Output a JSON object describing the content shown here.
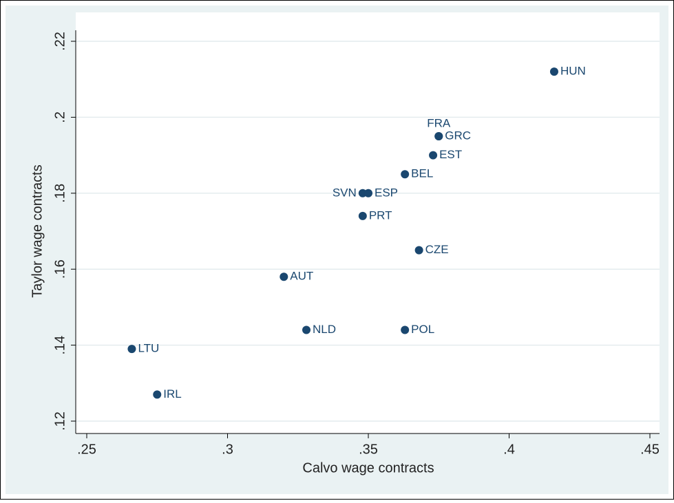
{
  "chart_data": {
    "type": "scatter",
    "xlabel": "Calvo wage contracts",
    "ylabel": "Taylor wage contracts",
    "names": [
      "HUN",
      "FRA",
      "GRC",
      "EST",
      "BEL",
      "SVN",
      "ESP",
      "PRT",
      "CZE",
      "AUT",
      "NLD",
      "POL",
      "LTU",
      "IRL"
    ],
    "label_positions": [
      "right",
      "top",
      "right",
      "right",
      "right",
      "left",
      "right",
      "right",
      "right",
      "right",
      "right",
      "right",
      "right",
      "right"
    ],
    "x": [
      0.416,
      0.375,
      0.375,
      0.373,
      0.363,
      0.348,
      0.35,
      0.348,
      0.368,
      0.32,
      0.328,
      0.363,
      0.266,
      0.275
    ],
    "y": [
      0.212,
      0.195,
      0.195,
      0.19,
      0.185,
      0.18,
      0.18,
      0.174,
      0.165,
      0.158,
      0.144,
      0.144,
      0.139,
      0.127
    ],
    "color": "#1a476f",
    "xlim": [
      0.25,
      0.45
    ],
    "xticks": [
      {
        "value": 0.25,
        "label": ".25"
      },
      {
        "value": 0.3,
        "label": ".3"
      },
      {
        "value": 0.35,
        "label": ".35"
      },
      {
        "value": 0.4,
        "label": ".4"
      },
      {
        "value": 0.45,
        "label": ".45"
      }
    ],
    "ylim": [
      0.12,
      0.22
    ],
    "yticks": [
      {
        "value": 0.12,
        "label": ".12"
      },
      {
        "value": 0.14,
        "label": ".14"
      },
      {
        "value": 0.16,
        "label": ".16"
      },
      {
        "value": 0.18,
        "label": ".18"
      },
      {
        "value": 0.2,
        "label": ".2"
      },
      {
        "value": 0.22,
        "label": ".22"
      }
    ],
    "grid": true
  }
}
